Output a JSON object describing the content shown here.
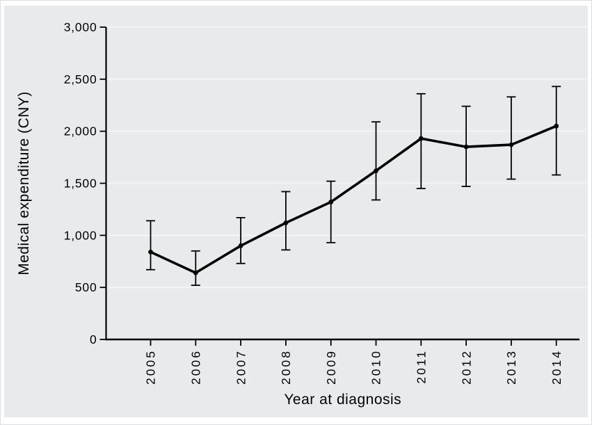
{
  "figure": {
    "background_color": "#ffffff",
    "panel_color": "#e8eaeb",
    "gridline_color": "#f3f4f6",
    "axis_color": "#000000",
    "series_color": "#000000",
    "text_color": "#000000"
  },
  "chart_data": {
    "type": "line",
    "title": "",
    "xlabel": "Year at diagnosis",
    "ylabel": "Medical expenditure (CNY)",
    "categories": [
      "2005",
      "2006",
      "2007",
      "2008",
      "2009",
      "2010",
      "2011",
      "2012",
      "2013",
      "2014"
    ],
    "series": [
      {
        "name": "Medical expenditure",
        "values": [
          840,
          640,
          900,
          1120,
          1320,
          1620,
          1930,
          1850,
          1870,
          2050
        ],
        "ci_lower": [
          670,
          520,
          730,
          860,
          930,
          1340,
          1450,
          1470,
          1540,
          1580
        ],
        "ci_upper": [
          1140,
          850,
          1170,
          1420,
          1520,
          2090,
          2360,
          2240,
          2330,
          2430
        ]
      }
    ],
    "ylim": [
      0,
      3000
    ],
    "yticks": [
      0,
      500,
      1000,
      1500,
      2000,
      2500,
      3000
    ],
    "grid": "horizontal",
    "legend": "none",
    "error_bars": true,
    "marker": "circle"
  }
}
